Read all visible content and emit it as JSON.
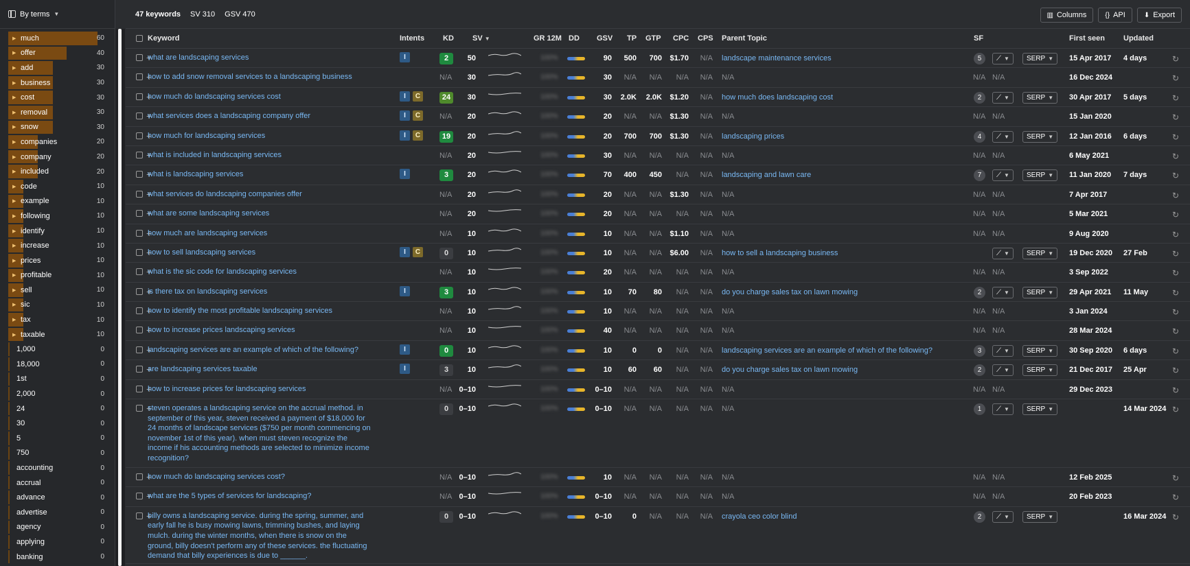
{
  "sidebar": {
    "mode_label": "By terms",
    "terms": [
      {
        "label": "much",
        "count": "60",
        "fill": 1.0,
        "arrow": true
      },
      {
        "label": "offer",
        "count": "40",
        "fill": 0.65,
        "arrow": true
      },
      {
        "label": "add",
        "count": "30",
        "fill": 0.5,
        "arrow": true
      },
      {
        "label": "business",
        "count": "30",
        "fill": 0.5,
        "arrow": true
      },
      {
        "label": "cost",
        "count": "30",
        "fill": 0.5,
        "arrow": true
      },
      {
        "label": "removal",
        "count": "30",
        "fill": 0.5,
        "arrow": true
      },
      {
        "label": "snow",
        "count": "30",
        "fill": 0.5,
        "arrow": true
      },
      {
        "label": "companies",
        "count": "20",
        "fill": 0.33,
        "arrow": true
      },
      {
        "label": "company",
        "count": "20",
        "fill": 0.33,
        "arrow": true
      },
      {
        "label": "included",
        "count": "20",
        "fill": 0.33,
        "arrow": true
      },
      {
        "label": "code",
        "count": "10",
        "fill": 0.17,
        "arrow": true
      },
      {
        "label": "example",
        "count": "10",
        "fill": 0.17,
        "arrow": true
      },
      {
        "label": "following",
        "count": "10",
        "fill": 0.17,
        "arrow": true
      },
      {
        "label": "identify",
        "count": "10",
        "fill": 0.17,
        "arrow": true
      },
      {
        "label": "increase",
        "count": "10",
        "fill": 0.17,
        "arrow": true
      },
      {
        "label": "prices",
        "count": "10",
        "fill": 0.17,
        "arrow": true
      },
      {
        "label": "profitable",
        "count": "10",
        "fill": 0.17,
        "arrow": true
      },
      {
        "label": "sell",
        "count": "10",
        "fill": 0.17,
        "arrow": true
      },
      {
        "label": "sic",
        "count": "10",
        "fill": 0.17,
        "arrow": true
      },
      {
        "label": "tax",
        "count": "10",
        "fill": 0.17,
        "arrow": true
      },
      {
        "label": "taxable",
        "count": "10",
        "fill": 0.17,
        "arrow": true
      },
      {
        "label": "1,000",
        "count": "0",
        "fill": 0,
        "arrow": false
      },
      {
        "label": "18,000",
        "count": "0",
        "fill": 0,
        "arrow": false
      },
      {
        "label": "1st",
        "count": "0",
        "fill": 0,
        "arrow": false
      },
      {
        "label": "2,000",
        "count": "0",
        "fill": 0,
        "arrow": false
      },
      {
        "label": "24",
        "count": "0",
        "fill": 0,
        "arrow": false
      },
      {
        "label": "30",
        "count": "0",
        "fill": 0,
        "arrow": false
      },
      {
        "label": "5",
        "count": "0",
        "fill": 0,
        "arrow": false
      },
      {
        "label": "750",
        "count": "0",
        "fill": 0,
        "arrow": false
      },
      {
        "label": "accounting",
        "count": "0",
        "fill": 0,
        "arrow": false
      },
      {
        "label": "accrual",
        "count": "0",
        "fill": 0,
        "arrow": false
      },
      {
        "label": "advance",
        "count": "0",
        "fill": 0,
        "arrow": false
      },
      {
        "label": "advertise",
        "count": "0",
        "fill": 0,
        "arrow": false
      },
      {
        "label": "agency",
        "count": "0",
        "fill": 0,
        "arrow": false
      },
      {
        "label": "applying",
        "count": "0",
        "fill": 0,
        "arrow": false
      },
      {
        "label": "banking",
        "count": "0",
        "fill": 0,
        "arrow": false
      }
    ]
  },
  "summary": {
    "keywords": "47 keywords",
    "sv": "SV 310",
    "gsv": "GSV 470"
  },
  "toolbar": {
    "columns": "Columns",
    "api": "API",
    "export": "Export"
  },
  "columns": {
    "keyword": "Keyword",
    "intents": "Intents",
    "kd": "KD",
    "sv": "SV",
    "gr": "GR 12M",
    "dd": "DD",
    "gsv": "GSV",
    "tp": "TP",
    "gtp": "GTP",
    "cpc": "CPC",
    "cps": "CPS",
    "parent": "Parent Topic",
    "sf": "SF",
    "first_seen": "First seen",
    "updated": "Updated"
  },
  "serp_label": "SERP",
  "rows": [
    {
      "kw": [
        "what are landscaping services"
      ],
      "intents": [
        "I"
      ],
      "kd": "2",
      "kdc": "g",
      "sv": "50",
      "gr": "100%",
      "gsv": "90",
      "tp": "500",
      "gtp": "700",
      "cpc": "$1.70",
      "cps": "N/A",
      "parent": "landscape maintenance services",
      "sf": "5",
      "buttons": true,
      "first": "15 Apr 2017",
      "updated": "4 days"
    },
    {
      "kw": [
        "how to add snow removal services to a landscaping business"
      ],
      "intents": [],
      "kd": "N/A",
      "kdc": "na",
      "sv": "30",
      "gr": "100%",
      "gsv": "30",
      "tp": "N/A",
      "gtp": "N/A",
      "cpc": "N/A",
      "cps": "N/A",
      "parent": "N/A",
      "sf": "N/A",
      "buttons": false,
      "first": "16 Dec 2024",
      "updated": ""
    },
    {
      "kw": [
        "how much do landscaping services cost"
      ],
      "intents": [
        "I",
        "C"
      ],
      "kd": "24",
      "kdc": "lg",
      "sv": "30",
      "gr": "100%",
      "gsv": "30",
      "tp": "2.0K",
      "gtp": "2.0K",
      "cpc": "$1.20",
      "cps": "N/A",
      "parent": "how much does landscaping cost",
      "sf": "2",
      "buttons": true,
      "first": "30 Apr 2017",
      "updated": "5 days"
    },
    {
      "kw": [
        "what services does a landscaping company offer"
      ],
      "intents": [
        "I",
        "C"
      ],
      "kd": "N/A",
      "kdc": "na",
      "sv": "20",
      "gr": "100%",
      "gsv": "20",
      "tp": "N/A",
      "gtp": "N/A",
      "cpc": "$1.30",
      "cps": "N/A",
      "parent": "N/A",
      "sf": "N/A",
      "buttons": false,
      "first": "15 Jan 2020",
      "updated": ""
    },
    {
      "kw": [
        "how much for landscaping services"
      ],
      "intents": [
        "I",
        "C"
      ],
      "kd": "19",
      "kdc": "g",
      "sv": "20",
      "gr": "100%",
      "gsv": "20",
      "tp": "700",
      "gtp": "700",
      "cpc": "$1.30",
      "cps": "N/A",
      "parent": "landscaping prices",
      "sf": "4",
      "buttons": true,
      "first": "12 Jan 2016",
      "updated": "6 days"
    },
    {
      "kw": [
        "what is included in landscaping services"
      ],
      "intents": [],
      "kd": "N/A",
      "kdc": "na",
      "sv": "20",
      "gr": "100%",
      "gsv": "30",
      "tp": "N/A",
      "gtp": "N/A",
      "cpc": "N/A",
      "cps": "N/A",
      "parent": "N/A",
      "sf": "N/A",
      "buttons": false,
      "first": "6 May 2021",
      "updated": ""
    },
    {
      "kw": [
        "what is landscaping services"
      ],
      "intents": [
        "I"
      ],
      "kd": "3",
      "kdc": "g",
      "sv": "20",
      "gr": "100%",
      "gsv": "70",
      "tp": "400",
      "gtp": "450",
      "cpc": "N/A",
      "cps": "N/A",
      "parent": "landscaping and lawn care",
      "sf": "7",
      "buttons": true,
      "first": "11 Jan 2020",
      "updated": "7 days"
    },
    {
      "kw": [
        "what services do landscaping companies offer"
      ],
      "intents": [],
      "kd": "N/A",
      "kdc": "na",
      "sv": "20",
      "gr": "100%",
      "gsv": "20",
      "tp": "N/A",
      "gtp": "N/A",
      "cpc": "$1.30",
      "cps": "N/A",
      "parent": "N/A",
      "sf": "N/A",
      "buttons": false,
      "first": "7 Apr 2017",
      "updated": ""
    },
    {
      "kw": [
        "what are some landscaping services"
      ],
      "intents": [],
      "kd": "N/A",
      "kdc": "na",
      "sv": "20",
      "gr": "100%",
      "gsv": "20",
      "tp": "N/A",
      "gtp": "N/A",
      "cpc": "N/A",
      "cps": "N/A",
      "parent": "N/A",
      "sf": "N/A",
      "buttons": false,
      "first": "5 Mar 2021",
      "updated": ""
    },
    {
      "kw": [
        "how much are landscaping services"
      ],
      "intents": [],
      "kd": "N/A",
      "kdc": "na",
      "sv": "10",
      "gr": "100%",
      "gsv": "10",
      "tp": "N/A",
      "gtp": "N/A",
      "cpc": "$1.10",
      "cps": "N/A",
      "parent": "N/A",
      "sf": "N/A",
      "buttons": false,
      "first": "9 Aug 2020",
      "updated": ""
    },
    {
      "kw": [
        "how to sell landscaping services"
      ],
      "intents": [
        "I",
        "C"
      ],
      "kd": "0",
      "kdc": "z",
      "sv": "10",
      "gr": "100%",
      "gsv": "10",
      "tp": "N/A",
      "gtp": "N/A",
      "cpc": "$6.00",
      "cps": "N/A",
      "parent": "how to sell a landscaping business",
      "sf": "",
      "buttons": true,
      "first": "19 Dec 2020",
      "updated": "27 Feb"
    },
    {
      "kw": [
        "what is the sic code for landscaping services"
      ],
      "intents": [],
      "kd": "N/A",
      "kdc": "na",
      "sv": "10",
      "gr": "100%",
      "gsv": "20",
      "tp": "N/A",
      "gtp": "N/A",
      "cpc": "N/A",
      "cps": "N/A",
      "parent": "N/A",
      "sf": "N/A",
      "buttons": false,
      "first": "3 Sep 2022",
      "updated": ""
    },
    {
      "kw": [
        "is there tax on landscaping services"
      ],
      "intents": [
        "I"
      ],
      "kd": "3",
      "kdc": "g",
      "sv": "10",
      "gr": "100%",
      "gsv": "10",
      "tp": "70",
      "gtp": "80",
      "cpc": "N/A",
      "cps": "N/A",
      "parent": "do you charge sales tax on lawn mowing",
      "sf": "2",
      "buttons": true,
      "first": "29 Apr 2021",
      "updated": "11 May"
    },
    {
      "kw": [
        "how to identify the most profitable landscaping services"
      ],
      "intents": [],
      "kd": "N/A",
      "kdc": "na",
      "sv": "10",
      "gr": "100%",
      "gsv": "10",
      "tp": "N/A",
      "gtp": "N/A",
      "cpc": "N/A",
      "cps": "N/A",
      "parent": "N/A",
      "sf": "N/A",
      "buttons": false,
      "first": "3 Jan 2024",
      "updated": ""
    },
    {
      "kw": [
        "how to increase prices landscaping services"
      ],
      "intents": [],
      "kd": "N/A",
      "kdc": "na",
      "sv": "10",
      "gr": "100%",
      "gsv": "40",
      "tp": "N/A",
      "gtp": "N/A",
      "cpc": "N/A",
      "cps": "N/A",
      "parent": "N/A",
      "sf": "N/A",
      "buttons": false,
      "first": "28 Mar 2024",
      "updated": ""
    },
    {
      "kw": [
        "landscaping services are an example of which of the following?"
      ],
      "intents": [
        "I"
      ],
      "kd": "0",
      "kdc": "g",
      "sv": "10",
      "gr": "100%",
      "gsv": "10",
      "tp": "0",
      "gtp": "0",
      "cpc": "N/A",
      "cps": "N/A",
      "parent": "landscaping services are an example of which of the following?",
      "sf": "3",
      "buttons": true,
      "first": "30 Sep 2020",
      "updated": "6 days"
    },
    {
      "kw": [
        "are landscaping services taxable"
      ],
      "intents": [
        "I"
      ],
      "kd": "3",
      "kdc": "z",
      "sv": "10",
      "gr": "100%",
      "gsv": "10",
      "tp": "60",
      "gtp": "60",
      "cpc": "N/A",
      "cps": "N/A",
      "parent": "do you charge sales tax on lawn mowing",
      "sf": "2",
      "buttons": true,
      "first": "21 Dec 2017",
      "updated": "25 Apr"
    },
    {
      "kw": [
        "how to increase prices for landscaping services"
      ],
      "intents": [],
      "kd": "N/A",
      "kdc": "na",
      "sv": "0–10",
      "gr": "100%",
      "gsv": "0–10",
      "tp": "N/A",
      "gtp": "N/A",
      "cpc": "N/A",
      "cps": "N/A",
      "parent": "N/A",
      "sf": "N/A",
      "buttons": false,
      "first": "29 Dec 2023",
      "updated": ""
    },
    {
      "kw": [
        "steven operates a landscaping service on the accrual method. in",
        "september of this year, steven received a payment of $18,000 for",
        "24 months of landscape services ($750 per month commencing on",
        "november 1st of this year). when must steven recognize the",
        "income if his accounting methods are selected to minimize income",
        "recognition?"
      ],
      "tall": "tall5",
      "intents": [],
      "kd": "0",
      "kdc": "z",
      "sv": "0–10",
      "gr": "100%",
      "gsv": "0–10",
      "tp": "N/A",
      "gtp": "N/A",
      "cpc": "N/A",
      "cps": "N/A",
      "parent": "N/A",
      "sf": "1",
      "buttons": true,
      "first": "",
      "updated": "14 Mar 2024"
    },
    {
      "kw": [
        "how much do landscaping services cost?"
      ],
      "intents": [],
      "kd": "N/A",
      "kdc": "na",
      "sv": "0–10",
      "gr": "100%",
      "gsv": "10",
      "tp": "N/A",
      "gtp": "N/A",
      "cpc": "N/A",
      "cps": "N/A",
      "parent": "N/A",
      "sf": "N/A",
      "buttons": false,
      "first": "12 Feb 2025",
      "updated": ""
    },
    {
      "kw": [
        "what are the 5 types of services for landscaping?"
      ],
      "intents": [],
      "kd": "N/A",
      "kdc": "na",
      "sv": "0–10",
      "gr": "100%",
      "gsv": "0–10",
      "tp": "N/A",
      "gtp": "N/A",
      "cpc": "N/A",
      "cps": "N/A",
      "parent": "N/A",
      "sf": "N/A",
      "buttons": false,
      "first": "20 Feb 2023",
      "updated": ""
    },
    {
      "kw": [
        "billy owns a landscaping service. during the spring, summer, and",
        "early fall he is busy mowing lawns, trimming bushes, and laying",
        "mulch. during the winter months, when there is snow on the",
        "ground, billy doesn't perform any of these services. the fluctuating",
        "demand that billy experiences is due to ______."
      ],
      "tall": "tall4",
      "intents": [],
      "kd": "0",
      "kdc": "z",
      "sv": "0–10",
      "gr": "100%",
      "gsv": "0–10",
      "tp": "0",
      "gtp": "N/A",
      "cpc": "N/A",
      "cps": "N/A",
      "parent": "crayola ceo color blind",
      "sf": "2",
      "buttons": true,
      "first": "",
      "updated": "16 Mar 2024"
    }
  ]
}
